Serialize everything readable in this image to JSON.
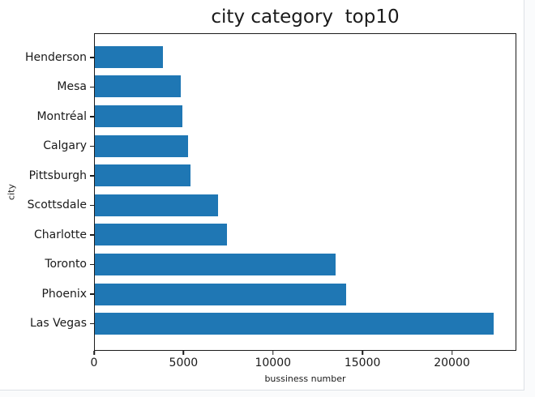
{
  "window": {
    "background": "#ffffff",
    "outer_background": "#fafbfc",
    "edge_border_color": "#dde1e6"
  },
  "chart_data": {
    "type": "bar",
    "orientation": "horizontal",
    "title": "city category  top10",
    "xlabel": "bussiness number",
    "ylabel": "city",
    "categories": [
      "Henderson",
      "Mesa",
      "Montréal",
      "Calgary",
      "Pittsburgh",
      "Scottsdale",
      "Charlotte",
      "Toronto",
      "Phoenix",
      "Las Vegas"
    ],
    "values": [
      3800,
      4810,
      4900,
      5240,
      5350,
      6930,
      7430,
      13510,
      14110,
      22370
    ],
    "xlim": [
      0,
      23600
    ],
    "xticks": [
      0,
      5000,
      10000,
      15000,
      20000
    ],
    "xtick_labels": [
      "0",
      "5000",
      "10000",
      "15000",
      "20000"
    ],
    "bar_color": "#1f77b4",
    "axis_color": "#1b1b1b",
    "grid": false,
    "legend": null,
    "category_order": "top-to-bottom"
  }
}
